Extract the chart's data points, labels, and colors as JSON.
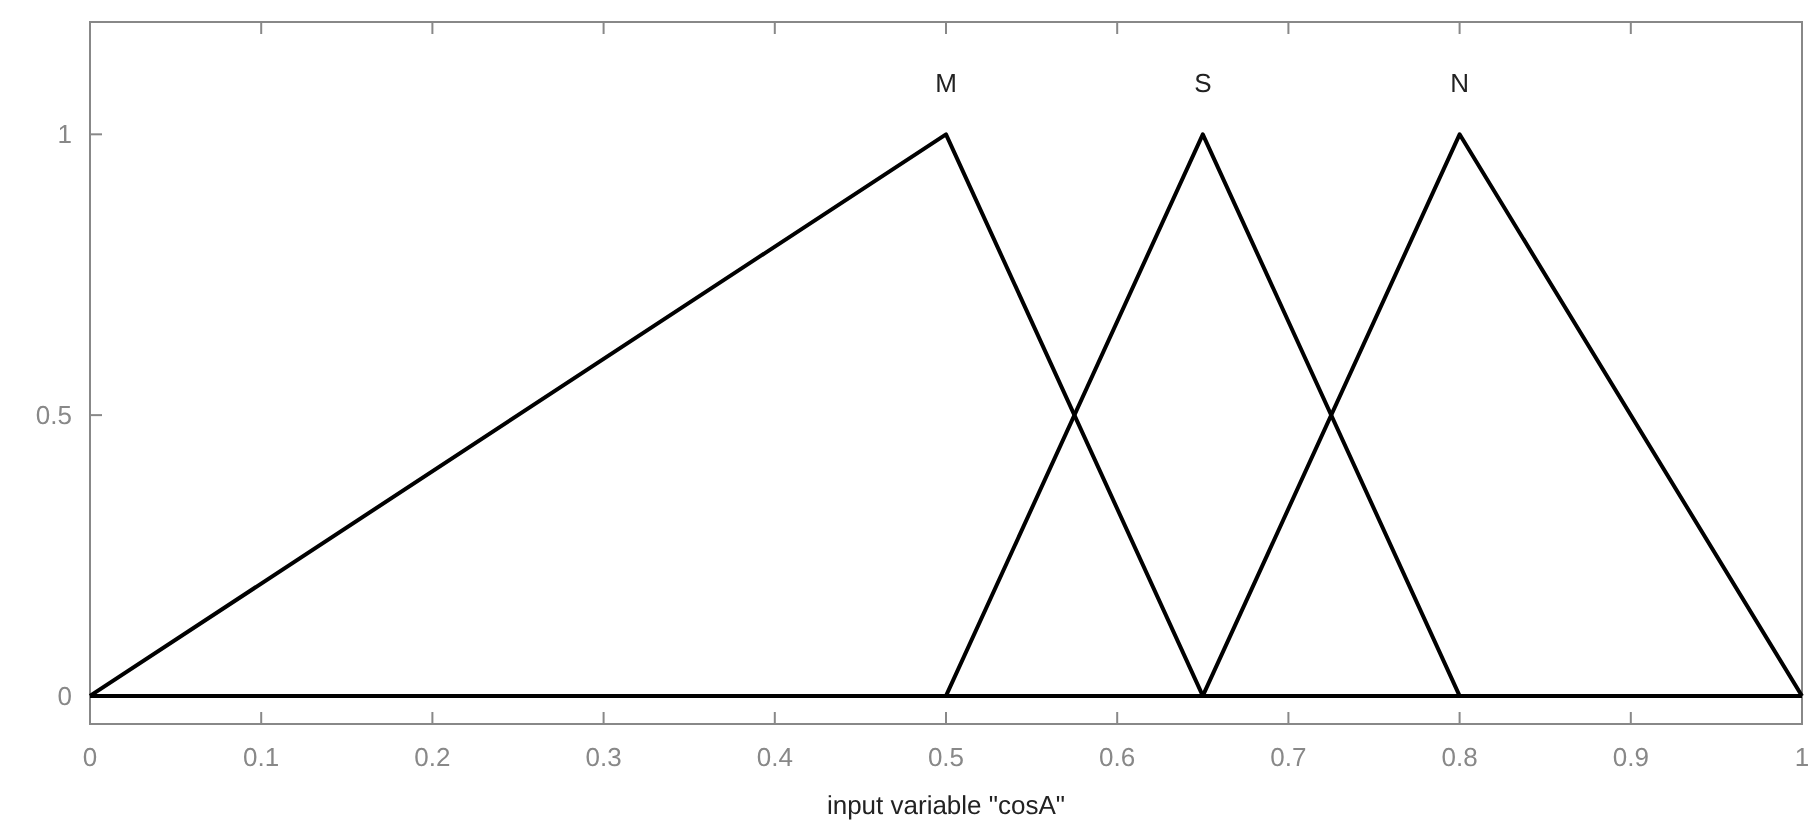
{
  "chart_data": {
    "type": "line",
    "xlabel": "input variable \"cosA\"",
    "series": [
      {
        "name": "M",
        "color": "#000000",
        "x": [
          0,
          0.5,
          0.65,
          1
        ],
        "values": [
          0,
          1,
          0,
          0
        ]
      },
      {
        "name": "S",
        "color": "#000000",
        "x": [
          0,
          0.5,
          0.65,
          0.8,
          1
        ],
        "values": [
          0,
          0,
          1,
          0,
          0
        ]
      },
      {
        "name": "N",
        "color": "#000000",
        "x": [
          0,
          0.65,
          0.8,
          1
        ],
        "values": [
          0,
          0,
          1,
          0
        ]
      }
    ],
    "xlim": [
      0,
      1
    ],
    "xticks": [
      0,
      0.1,
      0.2,
      0.3,
      0.4,
      0.5,
      0.6,
      0.7,
      0.8,
      0.9,
      1
    ],
    "ylim": [
      -0.05,
      1.2
    ],
    "yticks": [
      0,
      0.5,
      1
    ],
    "grid": false,
    "legend": false,
    "marker": "none",
    "line_style": "solid"
  }
}
